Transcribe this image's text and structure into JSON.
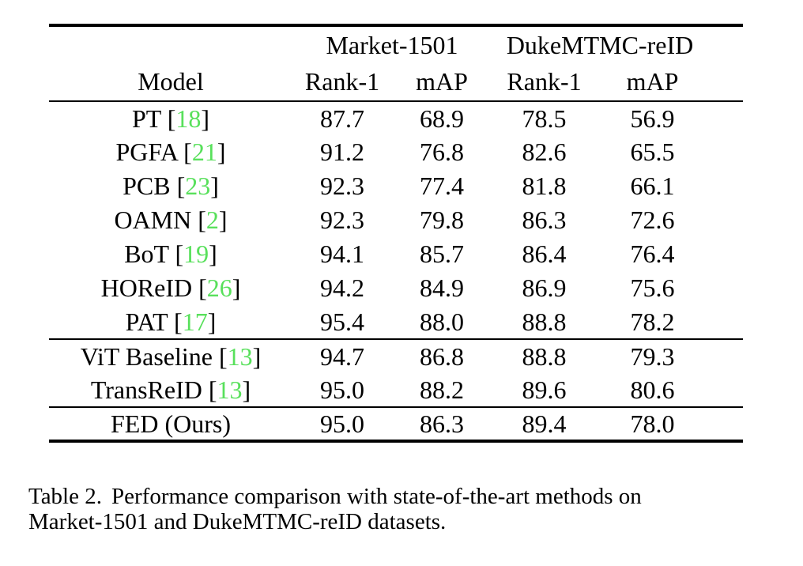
{
  "colors": {
    "citation_green": "#58e05b",
    "text": "#000000",
    "background": "#ffffff"
  },
  "table": {
    "group_headers": [
      {
        "label": ""
      },
      {
        "label": "Market-1501"
      },
      {
        "label": "DukeMTMC-reID"
      }
    ],
    "columns": [
      "Model",
      "Rank-1",
      "mAP",
      "Rank-1",
      "mAP"
    ],
    "groups": [
      {
        "rows": [
          {
            "name": "PT",
            "cite": "18",
            "values": [
              "87.7",
              "68.9",
              "78.5",
              "56.9"
            ],
            "bold": [
              false,
              false,
              false,
              false
            ]
          },
          {
            "name": "PGFA",
            "cite": "21",
            "values": [
              "91.2",
              "76.8",
              "82.6",
              "65.5"
            ],
            "bold": [
              false,
              false,
              false,
              false
            ]
          },
          {
            "name": "PCB",
            "cite": "23",
            "values": [
              "92.3",
              "77.4",
              "81.8",
              "66.1"
            ],
            "bold": [
              false,
              false,
              false,
              false
            ]
          },
          {
            "name": "OAMN",
            "cite": "2",
            "values": [
              "92.3",
              "79.8",
              "86.3",
              "72.6"
            ],
            "bold": [
              false,
              false,
              false,
              false
            ]
          },
          {
            "name": "BoT",
            "cite": "19",
            "values": [
              "94.1",
              "85.7",
              "86.4",
              "76.4"
            ],
            "bold": [
              false,
              false,
              false,
              false
            ]
          },
          {
            "name": "HOReID",
            "cite": "26",
            "values": [
              "94.2",
              "84.9",
              "86.9",
              "75.6"
            ],
            "bold": [
              false,
              false,
              false,
              false
            ]
          },
          {
            "name": "PAT",
            "cite": "17",
            "values": [
              "95.4",
              "88.0",
              "88.8",
              "78.2"
            ],
            "bold": [
              true,
              false,
              false,
              false
            ]
          }
        ]
      },
      {
        "rows": [
          {
            "name": "ViT Baseline",
            "cite": "13",
            "values": [
              "94.7",
              "86.8",
              "88.8",
              "79.3"
            ],
            "bold": [
              false,
              false,
              false,
              false
            ]
          },
          {
            "name": "TransReID",
            "cite": "13",
            "values": [
              "95.0",
              "88.2",
              "89.6",
              "80.6"
            ],
            "bold": [
              false,
              true,
              true,
              true
            ]
          }
        ]
      },
      {
        "rows": [
          {
            "name": "FED (Ours)",
            "cite": null,
            "values": [
              "95.0",
              "86.3",
              "89.4",
              "78.0"
            ],
            "bold": [
              false,
              false,
              false,
              false
            ]
          }
        ]
      }
    ]
  },
  "caption": {
    "label": "Table 2.",
    "text_line1": "Performance comparison with state-of-the-art methods on",
    "text_line2": "Market-1501 and DukeMTMC-reID datasets."
  }
}
